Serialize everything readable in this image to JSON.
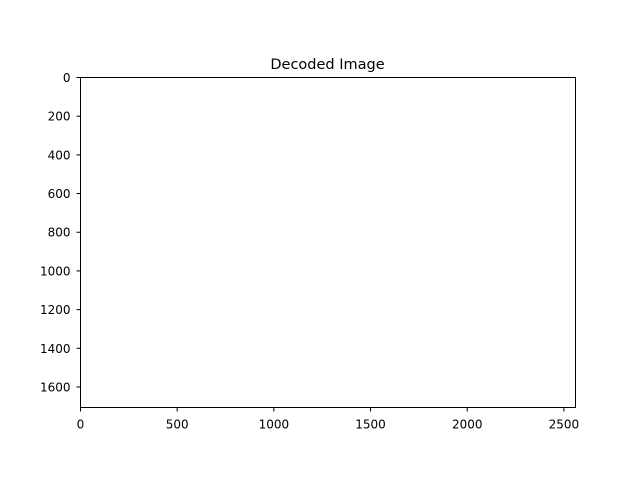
{
  "chart_data": {
    "type": "heatmap",
    "title": "Decoded Image",
    "xlabel": "",
    "ylabel": "",
    "image_extent": {
      "width": 2560,
      "height": 1706
    },
    "xlim": [
      0,
      2560
    ],
    "ylim": [
      1706,
      0
    ],
    "y_inverted": true,
    "x_ticks": [
      0,
      500,
      1000,
      1500,
      2000,
      2500
    ],
    "y_ticks": [
      0,
      200,
      400,
      600,
      800,
      1000,
      1200,
      1400,
      1600
    ],
    "x_tick_labels": [
      "0",
      "500",
      "1000",
      "1500",
      "2000",
      "2500"
    ],
    "y_tick_labels": [
      "0",
      "200",
      "400",
      "600",
      "800",
      "1000",
      "1200",
      "1400",
      "1600"
    ],
    "grid": false,
    "legend": "none",
    "image_fill": "#ffffff",
    "frame_color": "#000000"
  }
}
